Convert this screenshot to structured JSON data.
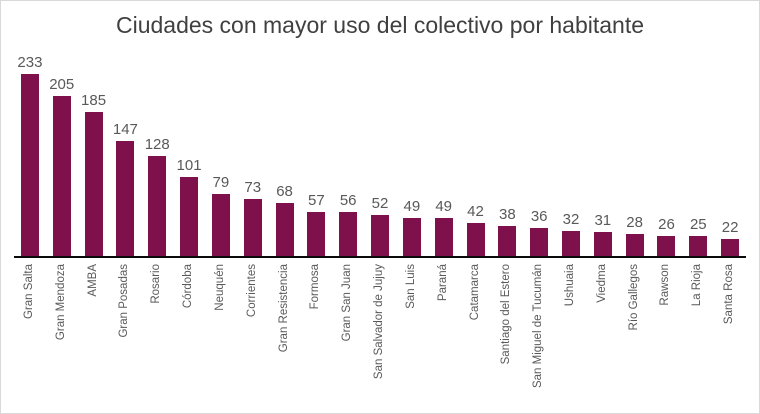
{
  "chart_data": {
    "type": "bar",
    "title": "Ciudades con mayor uso del colectivo por habitante",
    "categories": [
      "Gran Salta",
      "Gran Mendoza",
      "AMBA",
      "Gran Posadas",
      "Rosario",
      "Córdoba",
      "Neuquén",
      "Corrientes",
      "Gran Resistencia",
      "Formosa",
      "Gran San Juan",
      "San Salvador de Jujuy",
      "San Luis",
      "Paraná",
      "Catamarca",
      "Santiago del Estero",
      "San Miguel de Tucumán",
      "Ushuaia",
      "Viedma",
      "Río Gallegos",
      "Rawson",
      "La Rioja",
      "Santa Rosa"
    ],
    "values": [
      233,
      205,
      185,
      147,
      128,
      101,
      79,
      73,
      68,
      57,
      56,
      52,
      49,
      49,
      42,
      38,
      36,
      32,
      31,
      28,
      26,
      25,
      22
    ],
    "xlabel": "",
    "ylabel": "",
    "ylim": [
      0,
      250
    ],
    "grid": false,
    "legend": false,
    "value_labels_position": "above-bars",
    "x_tick_rotation_degrees": 90,
    "colors": {
      "bar": "#7E114B",
      "title": "#404040",
      "value_label": "#595959",
      "x_label": "#595959",
      "axis_line": "#0a0a0a",
      "canvas_background": "#ffffff",
      "canvas_border": "#D9D9D9"
    }
  }
}
